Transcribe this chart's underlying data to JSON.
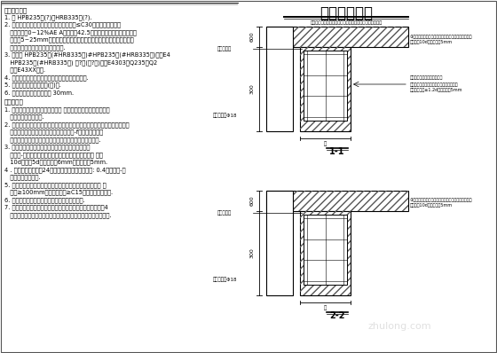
{
  "title": "梁加固施工图",
  "subtitle": "（对断面尺寸较小但满足钢筋配置计算要求的下部梁柱墙）",
  "bg_color": "#ffffff",
  "line_color": "#000000",
  "left_title1": "一、材料说明",
  "left_lines1": [
    "1. 钢 HPB235级(?)；HRB335级(?).",
    "2. 浇筑混凝土前，应对原构件凿毛，缝隙宽≤C30级混凝土，环氧砂",
    "   浆填缝泡沫0~12%AE A级，粗砂42.5标准砂拌和，细骨料粒径，拨",
    "   开粒径5~25mm为，并按照规范的表面处理，混凝土拌制时调整纤维混",
    "   凝土的配合比加适量的缓凝减水剂.",
    "3. 焊条续 HPB235级(#HRB335级)#HPB235级(#HRB335级)焊剂E4",
    "   HPB235级(#HRB335级) 框?材(框?材)焊剂E4303及Q235和Q2",
    "   钢板E43XX钢筋.",
    "4. 各连接部位的配筋保持同级，必须确保钢筋连接.",
    "5. 加固截面植筋保证锚固(锁)筋.",
    "6. 各构件植筋的保护层厚度 30mm."
  ],
  "left_title2": "二、施工注",
  "left_lines2": [
    "1. 施工时应认真核对地，施工之前 验收柱头，检查对接整筋，接",
    "   受任何可行上述施工.",
    "2. 加固施工时，先凿除松散混凝土，垫层须凿毛（梁的垫层）按既有图，直至",
    "   上部拆除完毕（节下道竖向截面的植筋用-f），柱筋绑扎结",
    "   扎钢筋，按照规范规定要求下设置，加上原梁，不得损毁.",
    "3. 植筋，绑扎绑，扎，绑，施加时作，不允许一道上",
    "   一道竖-绑扎，加固时注意，做好施工资料管理，细距 钻孔",
    "   10d，孔距5d，最细最小6mm，最细最大5mm.",
    "4 . 植筋时，胶接固化24小时后取出进行施工，钎间: 0.4孔径最大-各",
    "   必须满足设计要求.",
    "5. 施行时，基础的特验，混凝土固，结构钢筋通过验收以各 且",
    "   达到≥100mm起，最细最大≥C15级，确保施工检验.",
    "6. 加配钢筋固结混凝土加固施工，确保钢筋固结.",
    "7. 植筋施工时应做到按照规范植筋施工做法，采用化学植筋时4",
    "   不得出现钢筋的植筋化学对施工的影响，确定其质量的严格施工."
  ],
  "d1_label": "1-1",
  "d2_label": "2-2",
  "d1_dim_top": "600",
  "d1_dim_bot": "300",
  "d2_dim_top": "600",
  "d2_dim_bot": "300",
  "note_r1": "①植筋直在现场按图施工前，先要获得混凝土表面层厚",
  "note_r2": "锚液长度10d，孔径最小5mm",
  "note_r3": "新旧混凝土接触面均满足对抗",
  "note_r4": "新旧混凝土按对旧混凝土强度等级满足要求",
  "note_r5": "直距接，孔径≥1.2d，孔径最小5mm",
  "label_orig_bar": "原梁底筋位",
  "label_added_bar": "加固梁配筋Φ18",
  "label_anchor": "锚",
  "watermark": "zhulong.com"
}
